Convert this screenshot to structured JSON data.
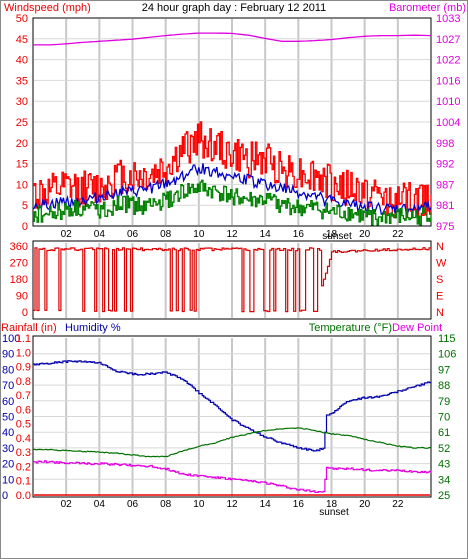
{
  "chart_data": [
    {
      "type": "line",
      "title": "24 hour graph day : February 12 2011",
      "left_axis": {
        "label": "Windspeed (mph)",
        "ticks": [
          "0",
          "5",
          "10",
          "15",
          "20",
          "25",
          "30",
          "35",
          "40",
          "45",
          "50"
        ],
        "ylim": [
          0,
          50
        ]
      },
      "right_axis": {
        "label": "Barometer (mb)",
        "ticks": [
          "975",
          "981",
          "987",
          "992",
          "998",
          "1004",
          "1010",
          "1016",
          "1022",
          "1027",
          "1033"
        ],
        "ylim": [
          975,
          1033
        ]
      },
      "x_ticks": [
        "02",
        "04",
        "06",
        "08",
        "10",
        "12",
        "14",
        "16",
        "18",
        "20",
        "22",
        ""
      ],
      "xlim": [
        0,
        24
      ],
      "annotation": "sunset",
      "sunset_hour": 17.6,
      "colors": {
        "gust": "#ff0000",
        "avg": "#0000cc",
        "min": "#008000",
        "baro": "#e000e0"
      },
      "series": [
        {
          "name": "Windspeed (mph)",
          "x": [
            0,
            1,
            2,
            3,
            4,
            5,
            6,
            7,
            8,
            9,
            10,
            11,
            12,
            13,
            14,
            15,
            16,
            17,
            18,
            19,
            20,
            21,
            22,
            23,
            24
          ],
          "values": [
            8,
            8,
            9,
            9,
            9,
            12,
            12,
            12,
            14,
            18,
            21,
            19,
            17,
            16,
            16,
            14,
            13,
            12,
            10,
            9,
            8,
            7,
            6,
            6,
            7
          ]
        },
        {
          "values": [
            5,
            5,
            6,
            6,
            7,
            8,
            8,
            9,
            10,
            12,
            14,
            13,
            12,
            11,
            10,
            9,
            8,
            7,
            6,
            5,
            5,
            4,
            4,
            4,
            5
          ]
        },
        {
          "values": [
            3,
            3,
            4,
            4,
            4,
            5,
            5,
            5,
            6,
            8,
            9,
            8,
            7,
            6,
            6,
            5,
            4,
            4,
            3,
            3,
            2,
            2,
            2,
            2,
            3
          ]
        },
        {
          "name": "Barometer (mb)",
          "x": [
            0,
            1,
            2,
            3,
            4,
            5,
            6,
            7,
            8,
            9,
            10,
            11,
            12,
            13,
            14,
            15,
            16,
            17,
            18,
            19,
            20,
            21,
            22,
            23,
            24
          ],
          "values": [
            1025.5,
            1025.5,
            1025.8,
            1026.2,
            1026.5,
            1026.8,
            1027.1,
            1027.6,
            1028.1,
            1028.5,
            1028.8,
            1028.8,
            1028.7,
            1028.2,
            1027.3,
            1026.5,
            1026.5,
            1026.7,
            1027,
            1027.5,
            1027.9,
            1028.1,
            1028.1,
            1028.2,
            1028.1
          ]
        }
      ]
    },
    {
      "type": "line",
      "left_axis": {
        "ticks": [
          "0",
          "90",
          "180",
          "270",
          "360"
        ],
        "ylim": [
          0,
          360
        ]
      },
      "right_axis": {
        "ticks": [
          "N",
          "E",
          "S",
          "W",
          "N"
        ]
      },
      "colors": {
        "dir": "#dd0000"
      },
      "series": [
        {
          "x": [
            0,
            1,
            2,
            3,
            4,
            5,
            6,
            7,
            8,
            9,
            10,
            11,
            12,
            13,
            14,
            15,
            16,
            17,
            18,
            19,
            20,
            21,
            22,
            23,
            24
          ],
          "values": [
            350,
            350,
            340,
            345,
            350,
            10,
            350,
            20,
            340,
            340,
            350,
            355,
            10,
            350,
            350,
            340,
            350,
            10,
            330,
            330,
            335,
            340,
            340,
            345,
            345
          ]
        }
      ]
    },
    {
      "type": "line",
      "left_labels": {
        "rain": "Rainfall (in)",
        "hum": "Humidity %"
      },
      "right_labels": {
        "temp": "Temperature (°F)",
        "dew": "Dew Point"
      },
      "rain_ticks": [
        "0.0",
        "0.1",
        "0.2",
        "0.3",
        "0.4",
        "0.5",
        "0.6",
        "0.7",
        "0.8",
        "0.9",
        "1.0",
        "1.1"
      ],
      "hum_ticks": [
        "0",
        "10",
        "20",
        "30",
        "40",
        "50",
        "60",
        "70",
        "80",
        "90",
        "100"
      ],
      "temp_ticks": [
        "25",
        "34",
        "43",
        "52",
        "61",
        "70",
        "79",
        "88",
        "97",
        "106",
        "115"
      ],
      "annotation": "sunset",
      "colors": {
        "rain": "#ee0000",
        "hum": "#0000aa",
        "temp": "#007000",
        "dew": "#e000e0"
      },
      "series": [
        {
          "name": "Humidity %",
          "x": [
            0,
            1,
            2,
            3,
            4,
            5,
            6,
            7,
            8,
            9,
            10,
            11,
            12,
            13,
            14,
            15,
            16,
            17,
            17.55,
            17.65,
            18,
            19,
            20,
            21,
            22,
            23,
            24
          ],
          "values": [
            83,
            84,
            85,
            85,
            84,
            79,
            77,
            77,
            78,
            74,
            65,
            57,
            48,
            42,
            37,
            33,
            30,
            28,
            30,
            51,
            52,
            60,
            62,
            63,
            66,
            69,
            72
          ]
        },
        {
          "name": "Temperature (°F)",
          "x": [
            0,
            1,
            2,
            3,
            4,
            5,
            6,
            7,
            8,
            9,
            10,
            11,
            12,
            13,
            14,
            15,
            16,
            17,
            18,
            19,
            20,
            21,
            22,
            23,
            24
          ],
          "values": [
            51,
            51,
            50.5,
            50,
            49.5,
            49,
            48,
            47,
            47,
            50,
            53,
            55,
            58,
            60,
            62,
            63,
            63.5,
            62,
            60,
            59,
            57,
            55,
            53,
            52,
            52
          ]
        },
        {
          "name": "Dew Point",
          "x": [
            0,
            1,
            2,
            3,
            4,
            5,
            6,
            7,
            8,
            9,
            10,
            11,
            12,
            13,
            14,
            15,
            16,
            17,
            17.55,
            17.65,
            18,
            19,
            20,
            21,
            22,
            23,
            24
          ],
          "values": [
            44,
            44,
            43.5,
            43,
            43,
            42.5,
            42,
            41.5,
            40,
            37,
            36,
            35,
            34,
            33,
            32,
            30,
            28,
            27,
            27,
            41,
            40,
            40,
            39.5,
            39,
            39,
            38.5,
            38
          ]
        },
        {
          "name": "Rainfall (in)",
          "x": [
            0,
            24
          ],
          "values": [
            0,
            0
          ]
        }
      ]
    }
  ]
}
